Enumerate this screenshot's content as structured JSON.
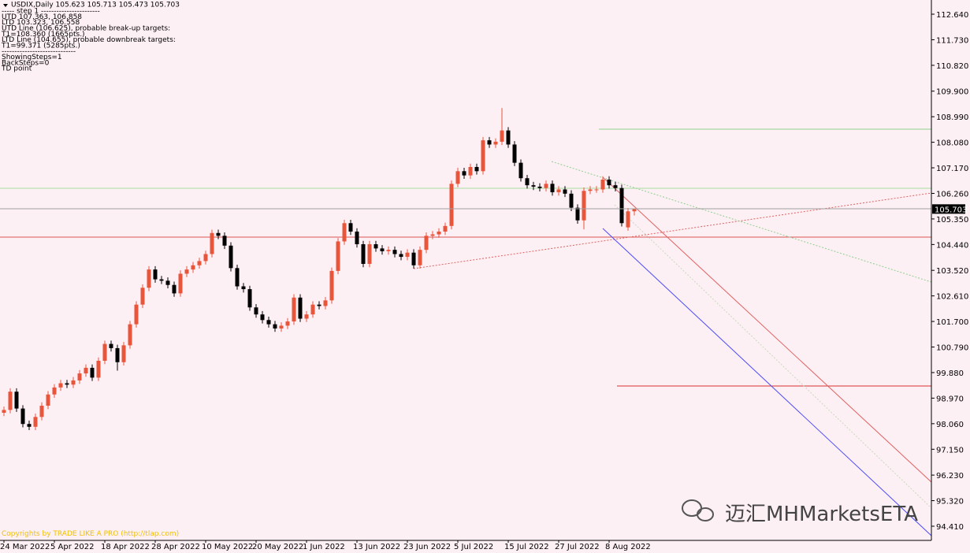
{
  "chart_data": {
    "type": "candlestick",
    "title": "USDIX,Daily  105.623 105.713 105.473 105.703",
    "info_lines": [
      "----- step 1 -----------------------",
      "UTD 107.363, 106.858",
      "LTD 103.323, 106.558",
      "UTD Line (106.625), probable break-up targets:",
      "T1=108.360 (1665pts.)",
      "LTD Line (104.655), probable downbreak targets:",
      "T1=99.371 (5285pts.)",
      "-----------------------------",
      "ShowingSteps=1",
      "BackSteps=0",
      "TD point"
    ],
    "copyright": "Copyrights by TRADE LIKE A PRO (http://tlap.com)",
    "watermark": "迈汇MHMarketsETA",
    "categories": [
      "24 Mar 2022",
      null,
      null,
      null,
      null,
      null,
      null,
      null,
      "5 Apr 2022",
      null,
      null,
      null,
      null,
      null,
      null,
      null,
      "18 Apr 2022",
      null,
      null,
      null,
      null,
      null,
      null,
      null,
      "28 Apr 2022",
      null,
      null,
      null,
      null,
      null,
      null,
      null,
      "10 May 2022",
      null,
      null,
      null,
      null,
      null,
      null,
      null,
      "20 May 2022",
      null,
      null,
      null,
      null,
      null,
      null,
      null,
      "1 Jun 2022",
      null,
      null,
      null,
      null,
      null,
      null,
      null,
      "13 Jun 2022",
      null,
      null,
      null,
      null,
      null,
      null,
      null,
      "23 Jun 2022",
      null,
      null,
      null,
      null,
      null,
      null,
      null,
      "5 Jul 2022",
      null,
      null,
      null,
      null,
      null,
      null,
      null,
      "15 Jul 2022",
      null,
      null,
      null,
      null,
      null,
      null,
      null,
      "27 Jul 2022",
      null,
      null,
      null,
      null,
      null,
      null,
      null,
      "8 Aug 2022",
      null,
      null,
      null,
      null
    ],
    "open": [
      98.45,
      98.55,
      99.2,
      98.6,
      98.05,
      97.95,
      98.3,
      98.7,
      99.1,
      99.35,
      99.5,
      99.45,
      99.6,
      99.85,
      100.05,
      99.7,
      100.3,
      100.9,
      100.75,
      100.25,
      100.85,
      101.6,
      102.3,
      102.9,
      103.55,
      103.2,
      103.15,
      103.0,
      102.7,
      103.4,
      103.55,
      103.7,
      103.85,
      104.1,
      104.85,
      104.75,
      104.4,
      103.6,
      102.95,
      102.85,
      102.2,
      101.95,
      101.75,
      101.6,
      101.45,
      101.55,
      101.7,
      102.55,
      101.8,
      101.95,
      102.3,
      102.25,
      102.45,
      103.5,
      104.55,
      105.2,
      104.9,
      104.45,
      103.75,
      104.45,
      104.3,
      104.2,
      104.25,
      104.1,
      104.0,
      104.15,
      103.7,
      104.25,
      104.75,
      104.8,
      104.9,
      105.1,
      106.6,
      107.05,
      106.9,
      107.2,
      107.05,
      108.15,
      108.0,
      108.1,
      108.5,
      108.0,
      107.35,
      106.8,
      106.55,
      106.5,
      106.45,
      106.6,
      106.3,
      106.4,
      106.25,
      105.75,
      105.3,
      106.35,
      106.4,
      106.4,
      106.75,
      106.55,
      106.45,
      105.05,
      105.623
    ],
    "high": [
      98.67,
      99.32,
      99.32,
      98.72,
      98.17,
      98.42,
      98.82,
      99.22,
      99.47,
      99.62,
      99.62,
      99.72,
      99.97,
      100.17,
      100.17,
      100.42,
      101.02,
      101.02,
      100.87,
      100.97,
      101.72,
      102.42,
      103.02,
      103.67,
      103.67,
      103.32,
      103.27,
      103.12,
      103.52,
      103.67,
      103.82,
      103.97,
      104.22,
      104.97,
      104.97,
      104.87,
      104.52,
      103.72,
      103.07,
      102.97,
      102.32,
      102.07,
      101.87,
      101.72,
      101.67,
      101.82,
      102.67,
      102.67,
      102.07,
      102.42,
      102.42,
      102.57,
      103.62,
      104.67,
      105.32,
      105.32,
      105.02,
      104.57,
      104.57,
      104.57,
      104.42,
      104.37,
      104.37,
      104.22,
      104.27,
      104.27,
      104.37,
      104.87,
      104.92,
      105.02,
      105.22,
      106.72,
      107.17,
      107.17,
      107.32,
      107.32,
      108.27,
      108.27,
      108.22,
      109.3,
      108.62,
      108.12,
      107.47,
      106.92,
      106.67,
      106.62,
      106.72,
      106.72,
      106.52,
      106.52,
      106.37,
      105.87,
      106.47,
      106.52,
      106.52,
      106.87,
      106.87,
      106.67,
      106.57,
      105.74,
      105.713
    ],
    "low": [
      98.33,
      98.43,
      98.48,
      97.93,
      97.83,
      97.83,
      98.18,
      98.58,
      98.98,
      99.23,
      99.33,
      99.33,
      99.48,
      99.73,
      99.58,
      99.58,
      100.18,
      100.63,
      99.95,
      100.13,
      100.73,
      101.48,
      102.18,
      102.78,
      103.08,
      103.03,
      102.88,
      102.58,
      102.58,
      103.28,
      103.43,
      103.58,
      103.73,
      103.98,
      104.63,
      104.28,
      103.48,
      102.83,
      102.73,
      102.08,
      101.83,
      101.63,
      101.48,
      101.33,
      101.33,
      101.43,
      101.58,
      101.68,
      101.68,
      101.83,
      102.13,
      102.13,
      102.33,
      103.38,
      104.43,
      104.78,
      104.33,
      103.63,
      103.63,
      104.18,
      104.08,
      104.08,
      103.98,
      103.88,
      103.88,
      103.58,
      103.58,
      104.13,
      104.63,
      104.68,
      104.78,
      104.98,
      106.48,
      106.78,
      106.78,
      106.93,
      106.93,
      107.88,
      107.88,
      107.98,
      107.88,
      107.23,
      106.68,
      106.43,
      106.38,
      106.33,
      106.33,
      106.18,
      106.18,
      106.13,
      105.63,
      105.18,
      104.98,
      106.23,
      106.28,
      106.28,
      106.43,
      106.33,
      105.08,
      104.93,
      105.473
    ],
    "close": [
      98.55,
      99.2,
      98.6,
      98.05,
      97.95,
      98.3,
      98.7,
      99.1,
      99.35,
      99.5,
      99.45,
      99.6,
      99.85,
      100.05,
      99.7,
      100.3,
      100.9,
      100.75,
      100.25,
      100.85,
      101.6,
      102.3,
      102.9,
      103.55,
      103.2,
      103.15,
      103.0,
      102.7,
      103.4,
      103.55,
      103.7,
      103.85,
      104.1,
      104.85,
      104.75,
      104.4,
      103.6,
      102.95,
      102.85,
      102.2,
      101.95,
      101.75,
      101.6,
      101.45,
      101.55,
      101.7,
      102.55,
      101.8,
      101.95,
      102.3,
      102.25,
      102.45,
      103.5,
      104.55,
      105.2,
      104.9,
      104.45,
      103.75,
      104.45,
      104.3,
      104.2,
      104.25,
      104.1,
      104.0,
      104.15,
      103.7,
      104.25,
      104.75,
      104.8,
      104.9,
      105.1,
      106.6,
      107.05,
      106.9,
      107.2,
      107.05,
      108.15,
      108.0,
      108.1,
      108.5,
      108.0,
      107.35,
      106.8,
      106.55,
      106.5,
      106.45,
      106.6,
      106.3,
      106.4,
      106.25,
      105.75,
      105.3,
      106.35,
      106.4,
      106.4,
      106.75,
      106.55,
      106.45,
      105.2,
      105.62,
      105.703
    ],
    "up_color": "#e8553b",
    "down_color": "#000000",
    "ylim": [
      93.905,
      113.145
    ],
    "yticks": [
      {
        "value": 112.64,
        "label": "112.640"
      },
      {
        "value": 111.73,
        "label": "111.730"
      },
      {
        "value": 110.82,
        "label": "110.820"
      },
      {
        "value": 109.9,
        "label": "109.900"
      },
      {
        "value": 108.99,
        "label": "108.990"
      },
      {
        "value": 108.08,
        "label": "108.080"
      },
      {
        "value": 107.17,
        "label": "107.170"
      },
      {
        "value": 106.26,
        "label": "106.260"
      },
      {
        "value": 105.35,
        "label": "105.350"
      },
      {
        "value": 104.44,
        "label": "104.440"
      },
      {
        "value": 103.52,
        "label": "103.520"
      },
      {
        "value": 102.61,
        "label": "102.610"
      },
      {
        "value": 101.7,
        "label": "101.700"
      },
      {
        "value": 100.79,
        "label": "100.790"
      },
      {
        "value": 99.88,
        "label": "99.880"
      },
      {
        "value": 98.97,
        "label": "98.970"
      },
      {
        "value": 98.06,
        "label": "98.060"
      },
      {
        "value": 97.15,
        "label": "97.150"
      },
      {
        "value": 96.23,
        "label": "96.230"
      },
      {
        "value": 95.32,
        "label": "95.320"
      },
      {
        "value": 94.41,
        "label": "94.410"
      }
    ],
    "grid": false
  }
}
